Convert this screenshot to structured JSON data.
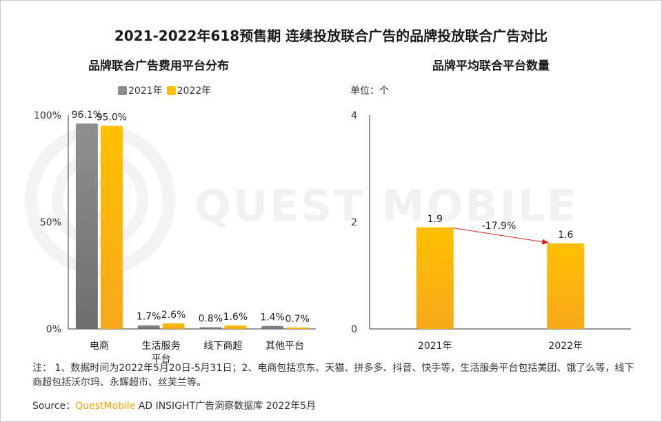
{
  "title": "2021-2022年618预售期 连续投放联合广告的品牌投放联合广告对比",
  "watermark": "QUEST MOBILE",
  "colors": {
    "c2021": "#8c8c8c",
    "c2022": "#ffc000",
    "arrow": "#e02020",
    "axis": "#333333"
  },
  "chart_data": [
    {
      "type": "bar",
      "title": "品牌联合广告费用平台分布",
      "categories": [
        "电商",
        "生活服务\n平台",
        "线下商超",
        "其他平台"
      ],
      "category_lines": [
        [
          "电商"
        ],
        [
          "生活服务",
          "平台"
        ],
        [
          "线下商超"
        ],
        [
          "其他平台"
        ]
      ],
      "series": [
        {
          "name": "2021年",
          "values": [
            96.1,
            1.7,
            0.8,
            1.4
          ],
          "labels": [
            "96.1%",
            "1.7%",
            "0.8%",
            "1.4%"
          ]
        },
        {
          "name": "2022年",
          "values": [
            95.0,
            2.6,
            1.6,
            0.7
          ],
          "labels": [
            "95.0%",
            "2.6%",
            "1.6%",
            "0.7%"
          ]
        }
      ],
      "yticks": [
        0,
        50,
        100
      ],
      "ytick_labels": [
        "0%",
        "50%",
        "100%"
      ],
      "ylim": [
        0,
        100
      ]
    },
    {
      "type": "bar",
      "title": "品牌平均联合平台数量",
      "unit": "单位：个",
      "categories": [
        "2021年",
        "2022年"
      ],
      "values": [
        1.9,
        1.6
      ],
      "labels": [
        "1.9",
        "1.6"
      ],
      "yticks": [
        0,
        2,
        4
      ],
      "ytick_labels": [
        "0",
        "2",
        "4"
      ],
      "ylim": [
        0,
        4
      ],
      "annotation": "-17.9%"
    }
  ],
  "legend": {
    "item_2021": "2021年",
    "item_2022": "2022年"
  },
  "note": "注：  1、数据时间为2022年5月20日-5月31日；2、电商包括京东、天猫、拼多多、抖音、快手等，生活服务平台包括美团、饿了么等，线下商超包括沃尔玛、永辉超市、丝芙兰等。",
  "source": {
    "prefix": "Source：",
    "brand": "QuestMobile",
    "rest": " AD INSIGHT广告洞察数据库 2022年5月"
  }
}
